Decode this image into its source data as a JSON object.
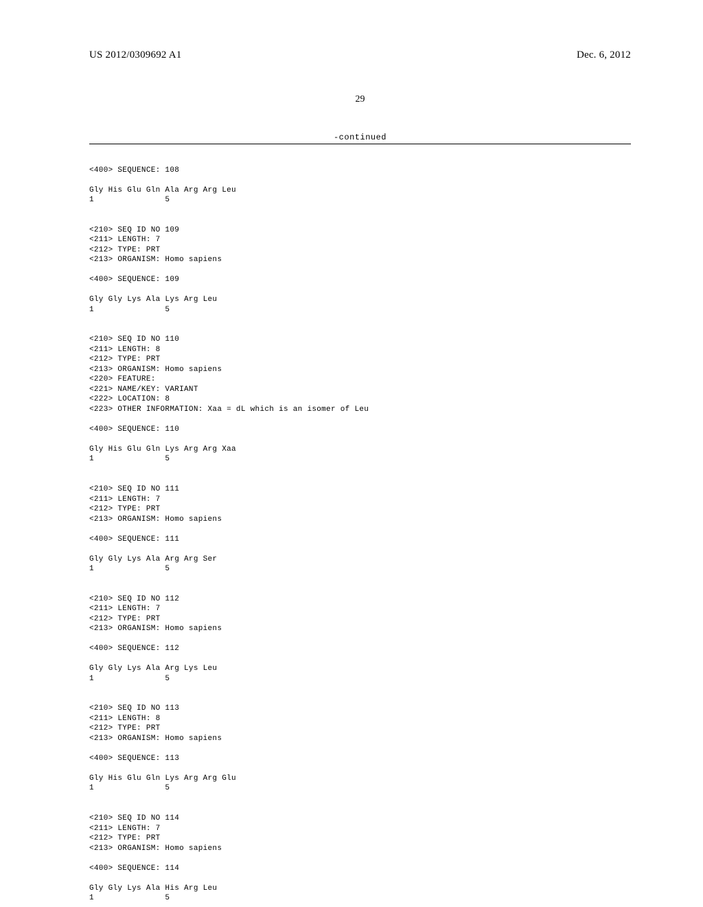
{
  "header": {
    "pub_number": "US 2012/0309692 A1",
    "pub_date": "Dec. 6, 2012"
  },
  "page_number": "29",
  "continued_label": "-continued",
  "sequences": [
    {
      "seq_tag": "<400> SEQUENCE: 108",
      "residues": "Gly His Glu Gln Ala Arg Arg Leu",
      "numline": "1               5"
    },
    {
      "headers": [
        "<210> SEQ ID NO 109",
        "<211> LENGTH: 7",
        "<212> TYPE: PRT",
        "<213> ORGANISM: Homo sapiens"
      ],
      "seq_tag": "<400> SEQUENCE: 109",
      "residues": "Gly Gly Lys Ala Lys Arg Leu",
      "numline": "1               5"
    },
    {
      "headers": [
        "<210> SEQ ID NO 110",
        "<211> LENGTH: 8",
        "<212> TYPE: PRT",
        "<213> ORGANISM: Homo sapiens",
        "<220> FEATURE:",
        "<221> NAME/KEY: VARIANT",
        "<222> LOCATION: 8",
        "<223> OTHER INFORMATION: Xaa = dL which is an isomer of Leu"
      ],
      "seq_tag": "<400> SEQUENCE: 110",
      "residues": "Gly His Glu Gln Lys Arg Arg Xaa",
      "numline": "1               5"
    },
    {
      "headers": [
        "<210> SEQ ID NO 111",
        "<211> LENGTH: 7",
        "<212> TYPE: PRT",
        "<213> ORGANISM: Homo sapiens"
      ],
      "seq_tag": "<400> SEQUENCE: 111",
      "residues": "Gly Gly Lys Ala Arg Arg Ser",
      "numline": "1               5"
    },
    {
      "headers": [
        "<210> SEQ ID NO 112",
        "<211> LENGTH: 7",
        "<212> TYPE: PRT",
        "<213> ORGANISM: Homo sapiens"
      ],
      "seq_tag": "<400> SEQUENCE: 112",
      "residues": "Gly Gly Lys Ala Arg Lys Leu",
      "numline": "1               5"
    },
    {
      "headers": [
        "<210> SEQ ID NO 113",
        "<211> LENGTH: 8",
        "<212> TYPE: PRT",
        "<213> ORGANISM: Homo sapiens"
      ],
      "seq_tag": "<400> SEQUENCE: 113",
      "residues": "Gly His Glu Gln Lys Arg Arg Glu",
      "numline": "1               5"
    },
    {
      "headers": [
        "<210> SEQ ID NO 114",
        "<211> LENGTH: 7",
        "<212> TYPE: PRT",
        "<213> ORGANISM: Homo sapiens"
      ],
      "seq_tag": "<400> SEQUENCE: 114",
      "residues": "Gly Gly Lys Ala His Arg Leu",
      "numline": "1               5"
    }
  ]
}
